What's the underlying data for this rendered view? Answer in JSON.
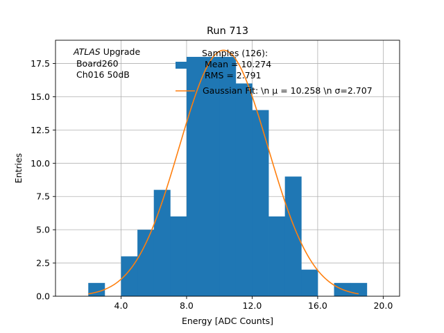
{
  "chart_data": {
    "type": "bar",
    "title": "Run 713",
    "xlabel": "Energy [ADC Counts]",
    "ylabel": "Entries",
    "xlim": [
      0.0,
      21.0
    ],
    "ylim": [
      0.0,
      19.25
    ],
    "xticks": [
      4.0,
      8.0,
      12.0,
      16.0,
      20.0
    ],
    "xtick_labels": [
      "4.0",
      "8.0",
      "12.0",
      "16.0",
      "20.0"
    ],
    "yticks": [
      0.0,
      2.5,
      5.0,
      7.5,
      10.0,
      12.5,
      15.0,
      17.5
    ],
    "ytick_labels": [
      "0.0",
      "2.5",
      "5.0",
      "7.5",
      "10.0",
      "12.5",
      "15.0",
      "17.5"
    ],
    "grid": true,
    "bin_edges": [
      2,
      3,
      4,
      5,
      6,
      7,
      8,
      9,
      10,
      11,
      12,
      13,
      14,
      15,
      16,
      17,
      18,
      19
    ],
    "bin_counts": [
      1,
      0,
      3,
      5,
      8,
      6,
      18,
      18,
      18,
      16,
      14,
      6,
      9,
      2,
      0,
      1,
      1
    ],
    "fit": {
      "mu": 10.258,
      "sigma": 2.707,
      "amplitude": 18.5,
      "x_range": [
        2.0,
        18.5
      ]
    },
    "colors": {
      "hist": "#1f77b4",
      "fit": "#ff7f0e",
      "grid": "#b0b0b0"
    },
    "annotation": {
      "line1_italic": "ATLAS",
      "line1_rest": " Upgrade",
      "line2": " Board260",
      "line3": " Ch016 50dB"
    },
    "legend": {
      "samples_title": "Samples (126):",
      "samples_mean": " Mean = 10.274",
      "samples_rms": " RMS = 2.791",
      "fit_label": "Gaussian Fit: \\n μ = 10.258 \\n σ=2.707"
    }
  }
}
